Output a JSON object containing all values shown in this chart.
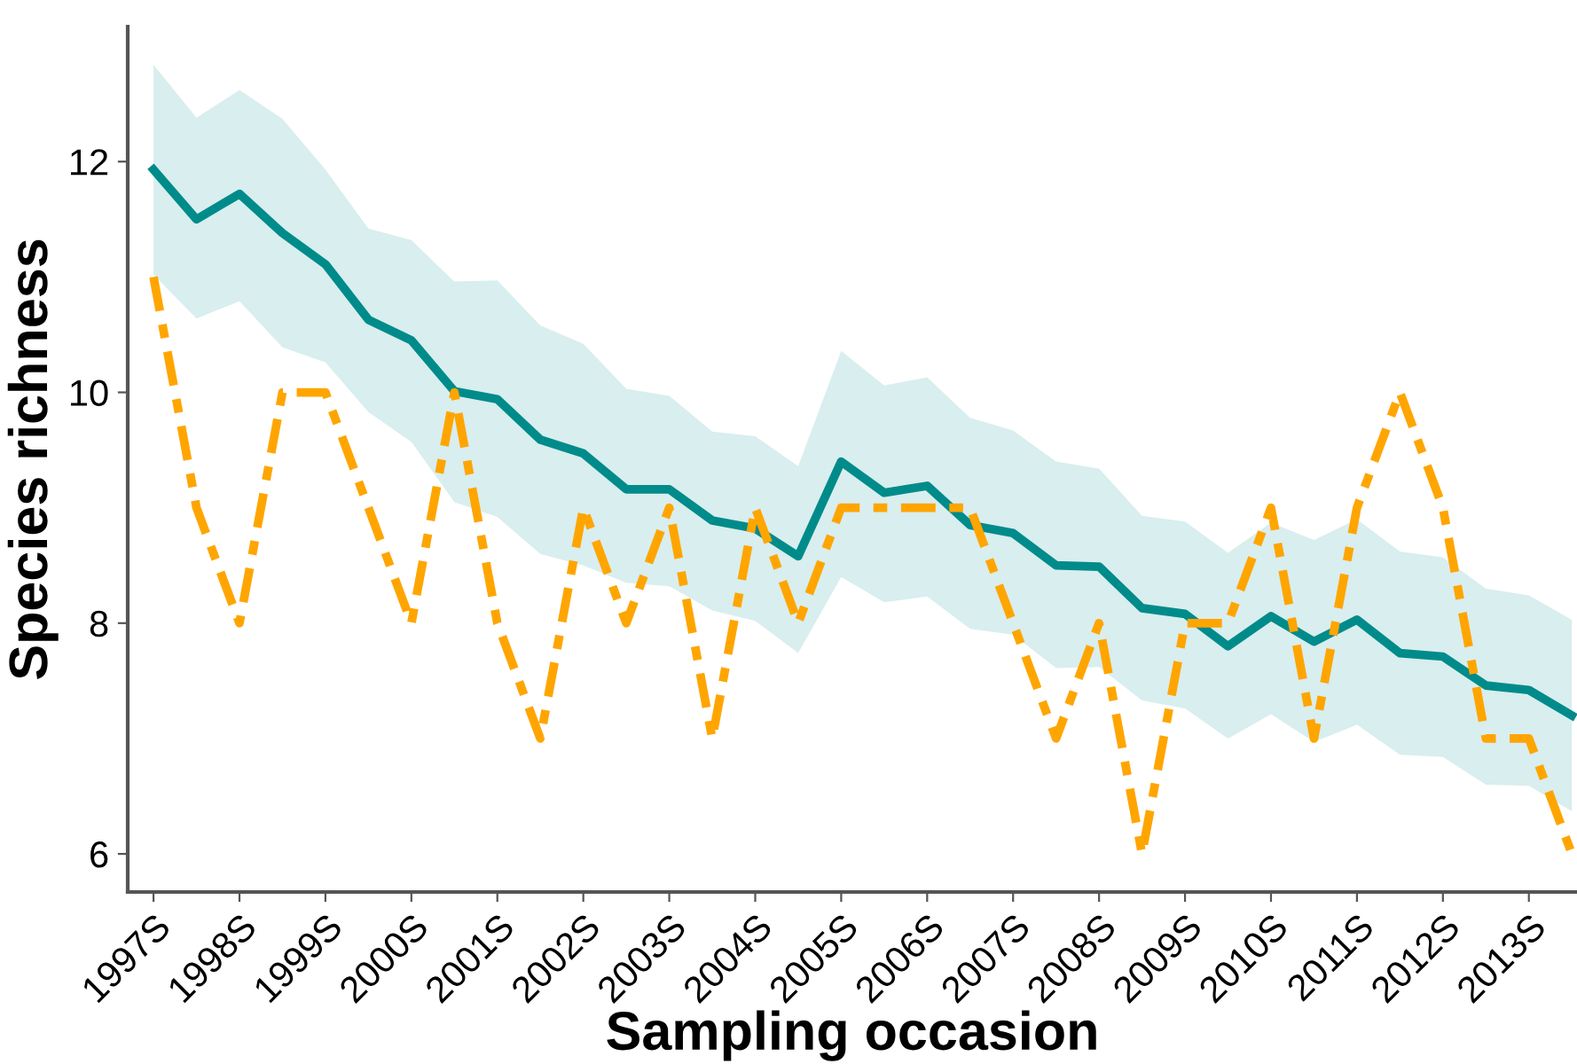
{
  "chart_data": {
    "type": "line",
    "xlabel": "Sampling occasion",
    "ylabel": "Species richness",
    "categories": [
      "1997S",
      null,
      "1998S",
      null,
      "1999S",
      null,
      "2000S",
      null,
      "2001S",
      null,
      "2002S",
      null,
      "2003S",
      null,
      "2004S",
      null,
      "2005S",
      null,
      "2006S",
      null,
      "2007S",
      null,
      "2008S",
      null,
      "2009S",
      null,
      "2010S",
      null,
      "2011S",
      null,
      "2012S",
      null,
      "2013S",
      null
    ],
    "series": [
      {
        "color": "#008b8b",
        "line_style": "solid",
        "values": [
          11.93,
          11.5,
          11.72,
          11.38,
          11.11,
          10.63,
          10.45,
          10.01,
          9.94,
          9.59,
          9.47,
          9.16,
          9.16,
          8.89,
          8.82,
          8.58,
          9.4,
          9.13,
          9.19,
          8.85,
          8.78,
          8.5,
          8.49,
          8.13,
          8.08,
          7.8,
          8.06,
          7.84,
          8.03,
          7.74,
          7.71,
          7.46,
          7.42,
          7.2
        ],
        "upper": [
          12.84,
          12.38,
          12.62,
          12.37,
          11.93,
          11.42,
          11.32,
          10.96,
          10.97,
          10.58,
          10.42,
          10.03,
          9.97,
          9.66,
          9.62,
          9.36,
          10.36,
          10.06,
          10.13,
          9.78,
          9.67,
          9.4,
          9.34,
          8.93,
          8.88,
          8.61,
          8.87,
          8.72,
          8.9,
          8.62,
          8.57,
          8.3,
          8.24,
          8.03
        ],
        "lower": [
          11.02,
          10.64,
          10.79,
          10.39,
          10.26,
          9.83,
          9.57,
          9.05,
          8.92,
          8.6,
          8.5,
          8.35,
          8.32,
          8.11,
          8.02,
          7.74,
          8.4,
          8.18,
          8.23,
          7.95,
          7.9,
          7.61,
          7.62,
          7.33,
          7.26,
          7.0,
          7.21,
          6.97,
          7.12,
          6.86,
          6.84,
          6.6,
          6.59,
          6.37
        ]
      },
      {
        "color": "#ffa500",
        "line_style": "dashed",
        "values": [
          11,
          9,
          8,
          10,
          10,
          9,
          8,
          10,
          8,
          7,
          9,
          8,
          9,
          7,
          9,
          8,
          9,
          9,
          9,
          9,
          8,
          7,
          8,
          6,
          8,
          8,
          9,
          7,
          9,
          10,
          9,
          7,
          7,
          6
        ]
      }
    ],
    "ylim": [
      5.67,
      13.17
    ],
    "yticks": [
      6,
      8,
      10,
      12
    ],
    "grid": false,
    "marker": "none"
  }
}
